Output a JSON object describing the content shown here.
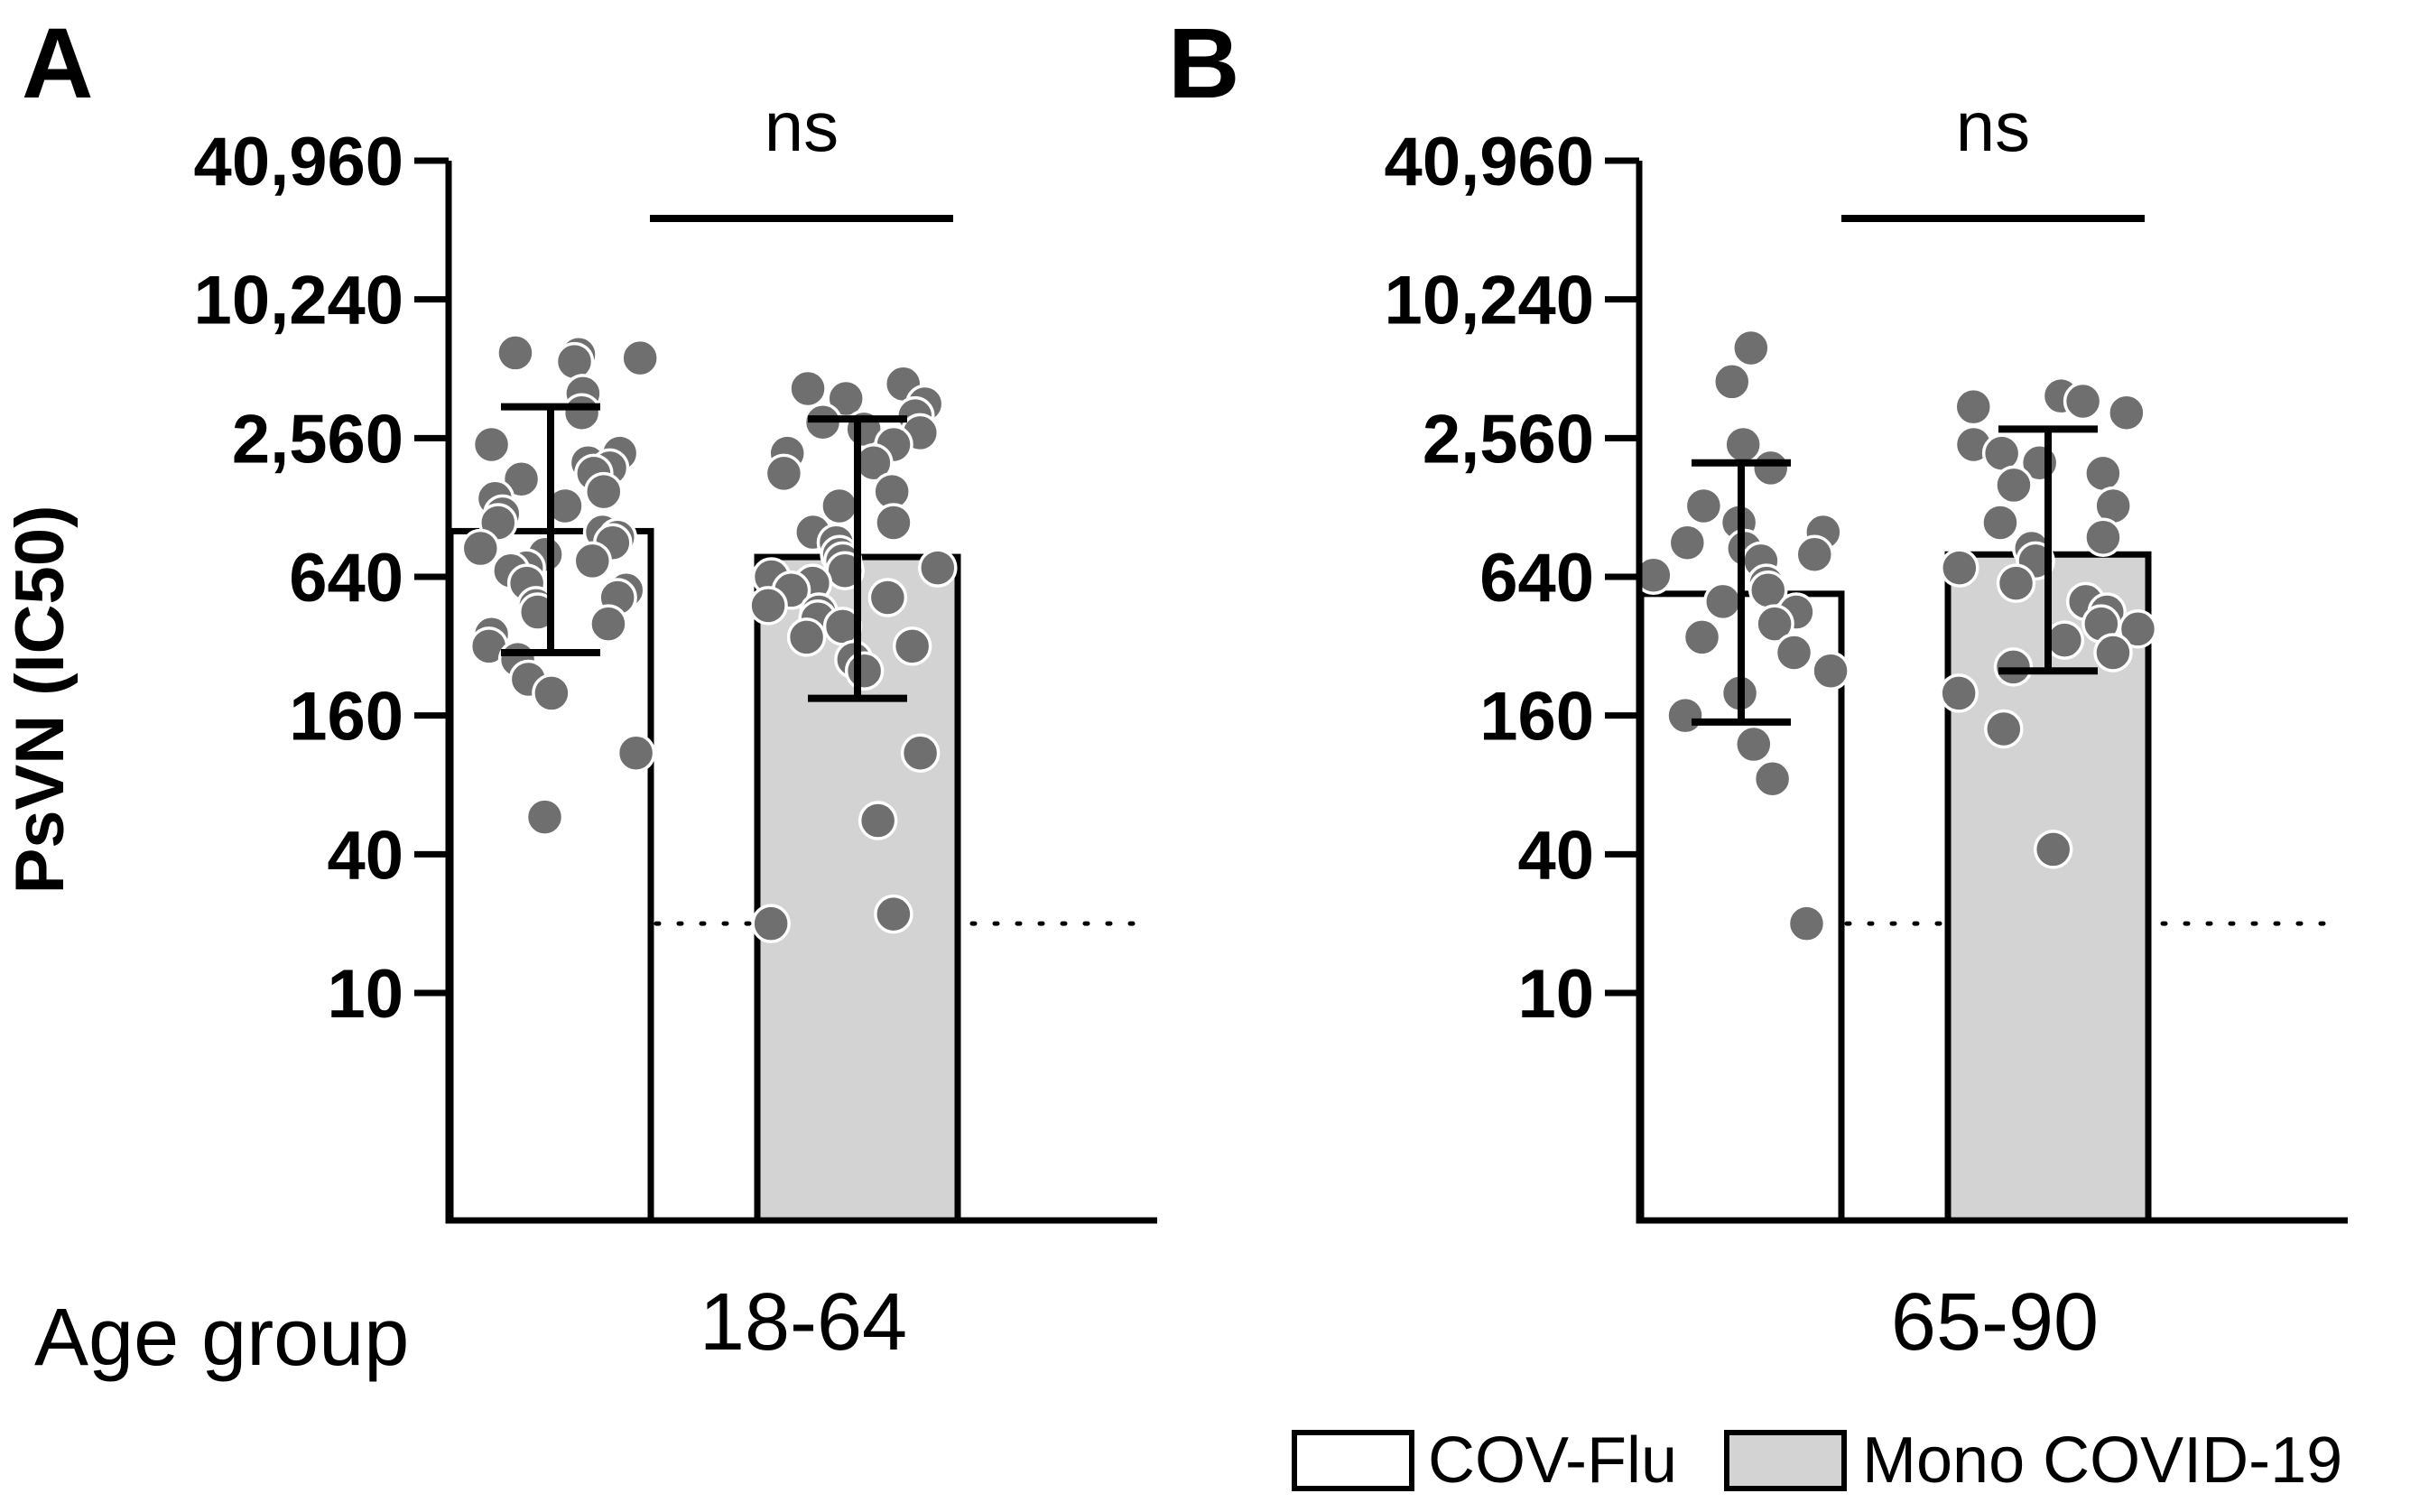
{
  "chart_data": [
    {
      "type": "bar",
      "panel_label": "A",
      "ylabel": "PsVN (IC50)",
      "xlabel": "Age group",
      "category": "18-64",
      "yscale": "log2",
      "ylim": [
        1.6,
        50000
      ],
      "yticks": [
        10,
        40,
        160,
        640,
        2560,
        10240,
        40960
      ],
      "ytick_labels": [
        "10",
        "40",
        "160",
        "640",
        "2,560",
        "10,240",
        "40,960"
      ],
      "detection_limit": 20,
      "significance": "ns",
      "series": [
        {
          "name": "COV-Flu",
          "bar_value": 1010,
          "error_low": 300,
          "error_high": 3500,
          "points": [
            5900,
            6000,
            5500,
            5700,
            4000,
            3300,
            2400,
            2200,
            2000,
            1900,
            1800,
            1700,
            1500,
            1400,
            1300,
            1200,
            1100,
            1000,
            950,
            900,
            850,
            800,
            750,
            700,
            680,
            600,
            560,
            520,
            480,
            450,
            400,
            360,
            320,
            280,
            230,
            200,
            110,
            58
          ]
        },
        {
          "name": "Mono COVID-19",
          "bar_value": 780,
          "error_low": 190,
          "error_high": 3100,
          "points": [
            4400,
            4200,
            3800,
            3600,
            3200,
            3000,
            2800,
            2700,
            2400,
            2200,
            2000,
            1800,
            1500,
            1300,
            1100,
            1000,
            900,
            800,
            750,
            700,
            680,
            640,
            600,
            560,
            520,
            480,
            450,
            420,
            390,
            350,
            320,
            280,
            250,
            110,
            56,
            22,
            20
          ]
        }
      ]
    },
    {
      "type": "bar",
      "panel_label": "B",
      "category": "65-90",
      "yscale": "log2",
      "ylim": [
        1.6,
        50000
      ],
      "yticks": [
        10,
        40,
        160,
        640,
        2560,
        10240,
        40960
      ],
      "ytick_labels": [
        "10",
        "40",
        "160",
        "640",
        "2,560",
        "10,240",
        "40,960"
      ],
      "detection_limit": 20,
      "significance": "ns",
      "series": [
        {
          "name": "COV-Flu",
          "bar_value": 540,
          "error_low": 150,
          "error_high": 2000,
          "points": [
            6300,
            4500,
            2400,
            1900,
            1300,
            1100,
            1000,
            900,
            850,
            800,
            750,
            650,
            600,
            560,
            500,
            450,
            400,
            350,
            300,
            250,
            200,
            160,
            120,
            85,
            20
          ]
        },
        {
          "name": "Mono COVID-19",
          "bar_value": 800,
          "error_low": 250,
          "error_high": 2800,
          "points": [
            3900,
            3700,
            3500,
            3300,
            2400,
            2200,
            2000,
            1800,
            1600,
            1300,
            1100,
            950,
            850,
            750,
            700,
            600,
            500,
            450,
            400,
            380,
            340,
            300,
            260,
            200,
            140,
            42
          ]
        }
      ]
    }
  ],
  "legend": [
    {
      "label": "COV-Flu",
      "color": "#ffffff"
    },
    {
      "label": "Mono COVID-19",
      "color": "#d3d3d3"
    }
  ],
  "colors": {
    "axis": "#000000",
    "bar_a": "#ffffff",
    "bar_b": "#d3d3d3",
    "point": "#6f6f6f",
    "point_stroke": "#ffffff"
  }
}
